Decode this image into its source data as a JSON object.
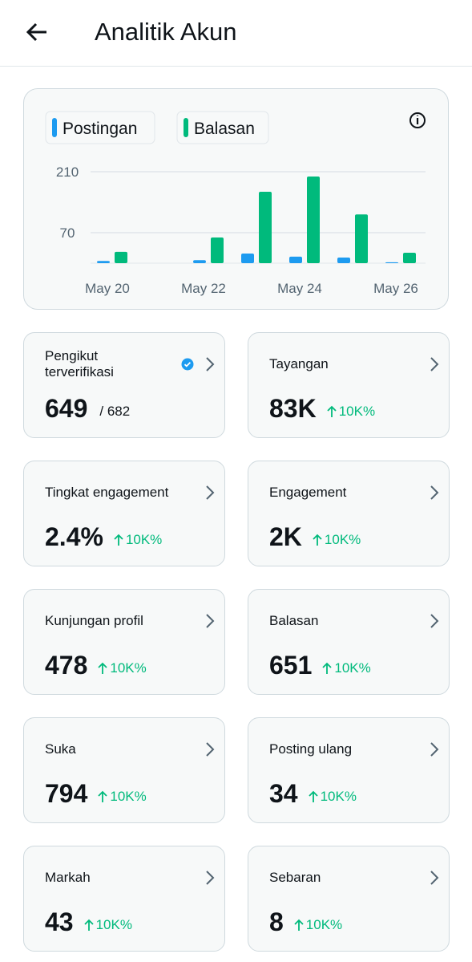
{
  "header": {
    "title": "Analitik Akun"
  },
  "chart_data": {
    "type": "bar",
    "categories": [
      "May 20",
      null,
      "May 22",
      null,
      "May 24",
      null,
      "May 26"
    ],
    "series": [
      {
        "name": "Postingan",
        "color": "#1d9bf0",
        "values": [
          5,
          0,
          7,
          22,
          15,
          13,
          2
        ]
      },
      {
        "name": "Balasan",
        "color": "#00ba7c",
        "values": [
          26,
          0,
          59,
          164,
          199,
          112,
          24
        ]
      }
    ],
    "ylim": [
      0,
      210
    ],
    "yticks": [
      70,
      210
    ],
    "grid": true
  },
  "stats": [
    {
      "label": "Pengikut terverifikasi",
      "value": "649",
      "total": "/ 682"
    },
    {
      "label": "Tayangan",
      "value": "83K",
      "change": "10K%"
    },
    {
      "label": "Tingkat engagement",
      "value": "2.4%",
      "change": "10K%"
    },
    {
      "label": "Engagement",
      "value": "2K",
      "change": "10K%"
    },
    {
      "label": "Kunjungan profil",
      "value": "478",
      "change": "10K%"
    },
    {
      "label": "Balasan",
      "value": "651",
      "change": "10K%"
    },
    {
      "label": "Suka",
      "value": "794",
      "change": "10K%"
    },
    {
      "label": "Posting ulang",
      "value": "34",
      "change": "10K%"
    },
    {
      "label": "Markah",
      "value": "43",
      "change": "10K%"
    },
    {
      "label": "Sebaran",
      "value": "8",
      "change": "10K%"
    }
  ]
}
